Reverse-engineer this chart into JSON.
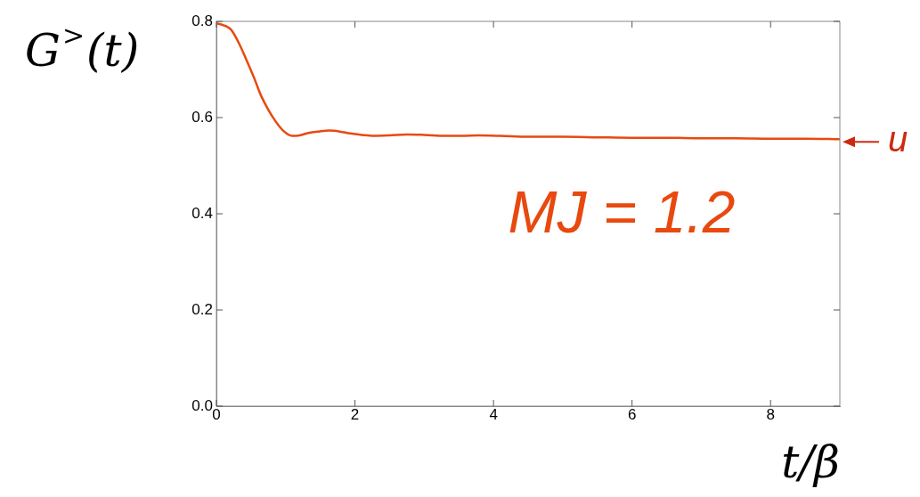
{
  "chart_data": {
    "type": "line",
    "ylabel": "G$^{>}$(t)",
    "xlabel": "t/β",
    "xlim": [
      0,
      9
    ],
    "ylim": [
      0,
      0.8
    ],
    "xticks": [
      0,
      2,
      4,
      6,
      8
    ],
    "yticks": [
      {
        "value": 0,
        "label": "0.0"
      },
      0.2,
      0.4,
      0.6,
      0.8
    ],
    "grid": false,
    "legend": false,
    "marker": "none",
    "line_style": "solid",
    "annotations": [
      {
        "text": "u",
        "x": 9,
        "y": 0.555
      },
      "MJ = 1.2"
    ],
    "series": [
      {
        "color": "#e8490f",
        "x": [
          0,
          0.1,
          0.21,
          0.32,
          0.43,
          0.54,
          0.64,
          0.75,
          0.86,
          0.97,
          1.09,
          1.2,
          1.33,
          1.48,
          1.63,
          1.78,
          1.93,
          2.1,
          2.27,
          2.5,
          2.75,
          3.0,
          3.3,
          3.55,
          3.78,
          4.1,
          4.5,
          5.0,
          5.5,
          6.0,
          6.5,
          7.0,
          7.5,
          8.0,
          8.5,
          9.0
        ],
        "values": [
          0.796,
          0.792,
          0.783,
          0.756,
          0.721,
          0.684,
          0.647,
          0.616,
          0.591,
          0.572,
          0.562,
          0.563,
          0.568,
          0.571,
          0.573,
          0.571,
          0.567,
          0.564,
          0.562,
          0.563,
          0.565,
          0.564,
          0.562,
          0.562,
          0.563,
          0.562,
          0.56,
          0.56,
          0.559,
          0.558,
          0.558,
          0.557,
          0.557,
          0.556,
          0.556,
          0.555
        ]
      }
    ]
  }
}
